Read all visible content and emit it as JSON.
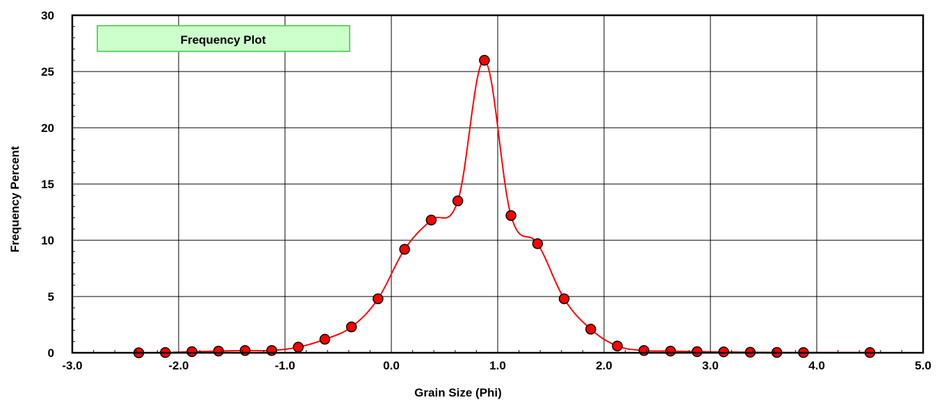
{
  "chart_data": {
    "type": "line",
    "title": "Frequency Plot",
    "xlabel": "Grain Size (Phi)",
    "ylabel": "Frequency Percent",
    "xlim": [
      -3.0,
      5.0
    ],
    "ylim": [
      0,
      30
    ],
    "x_ticks": [
      "-3.0",
      "-2.0",
      "-1.0",
      "0.0",
      "1.0",
      "2.0",
      "3.0",
      "4.0",
      "5.0"
    ],
    "y_ticks": [
      "0",
      "5",
      "10",
      "15",
      "20",
      "25",
      "30"
    ],
    "grid": true,
    "legend_position": "top-left",
    "series": [
      {
        "line_color": "#ff0000",
        "marker_color": "#ff0000",
        "marker_edge_color": "#000000",
        "x": [
          -2.375,
          -2.125,
          -1.875,
          -1.625,
          -1.375,
          -1.125,
          -0.875,
          -0.625,
          -0.375,
          -0.125,
          0.125,
          0.375,
          0.625,
          0.875,
          1.125,
          1.375,
          1.625,
          1.875,
          2.125,
          2.375,
          2.625,
          2.875,
          3.125,
          3.375,
          3.625,
          3.875,
          4.5
        ],
        "y": [
          0.0,
          0.02,
          0.1,
          0.15,
          0.2,
          0.2,
          0.5,
          1.2,
          2.3,
          4.8,
          9.2,
          11.8,
          13.5,
          26.0,
          12.2,
          9.7,
          4.8,
          2.1,
          0.6,
          0.2,
          0.15,
          0.1,
          0.08,
          0.05,
          0.03,
          0.02,
          0.02
        ]
      }
    ]
  }
}
